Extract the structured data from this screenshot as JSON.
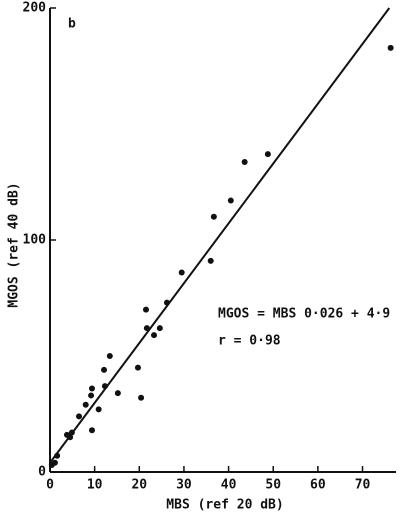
{
  "chart_data": {
    "type": "scatter",
    "panel_label": "b",
    "x_label": "MBS (ref 20 dB)",
    "y_label": "MGOS (ref 40 dB)",
    "annotations": [
      "MGOS = MBS  0·026 + 4·9",
      "r = 0·98"
    ],
    "xlim": [
      0,
      77.5
    ],
    "ylim": [
      0,
      200
    ],
    "xticks": [
      0,
      10,
      20,
      30,
      40,
      50,
      60,
      70
    ],
    "yticks": [
      0,
      100,
      200
    ],
    "color": "#111111",
    "x": [
      76.3,
      48.8,
      43.6,
      40.5,
      36.7,
      36,
      29.5,
      26.2,
      21.5,
      21.7,
      24.6,
      23.3,
      19.7,
      20.4,
      15.2,
      13.4,
      12.1,
      12.3,
      10.9,
      9.4,
      9.2,
      9.4,
      8,
      6.5,
      4.9,
      3.8,
      4.5,
      1.6,
      1.1,
      0.4
    ],
    "values": [
      182.8,
      137,
      133.6,
      117,
      110,
      91,
      86,
      73,
      70,
      62,
      62,
      59,
      45,
      32,
      34,
      50,
      44,
      37,
      27,
      36,
      33,
      18,
      29,
      24,
      17,
      16,
      15,
      7,
      4,
      3
    ],
    "fit_line": {
      "x": [
        0,
        76
      ],
      "y": [
        4,
        200
      ]
    }
  }
}
